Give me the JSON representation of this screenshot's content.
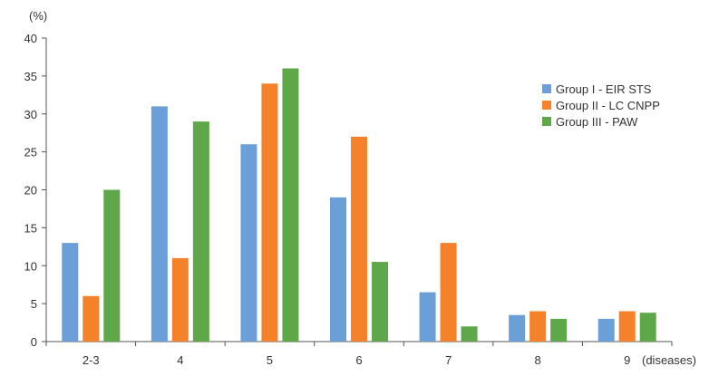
{
  "chart_data": {
    "type": "bar",
    "ylabel": "(%)",
    "xlabel": "(diseases)",
    "ylim": [
      0,
      40
    ],
    "yticks": [
      0,
      5,
      10,
      15,
      20,
      25,
      30,
      35,
      40
    ],
    "categories": [
      "2-3",
      "4",
      "5",
      "6",
      "7",
      "8",
      "9"
    ],
    "series": [
      {
        "name": "Group I - EIR STS",
        "color": "#6a9fd8",
        "values": [
          13,
          31,
          26,
          19,
          6.5,
          3.5,
          3
        ]
      },
      {
        "name": "Group II - LC CNPP",
        "color": "#f5822a",
        "values": [
          6,
          11,
          34,
          27,
          13,
          4,
          4
        ]
      },
      {
        "name": "Group III - PAW",
        "color": "#5fa84a",
        "values": [
          20,
          29,
          36,
          10.5,
          2,
          3,
          3.8
        ]
      }
    ],
    "legend_position": "right",
    "grid": false
  }
}
